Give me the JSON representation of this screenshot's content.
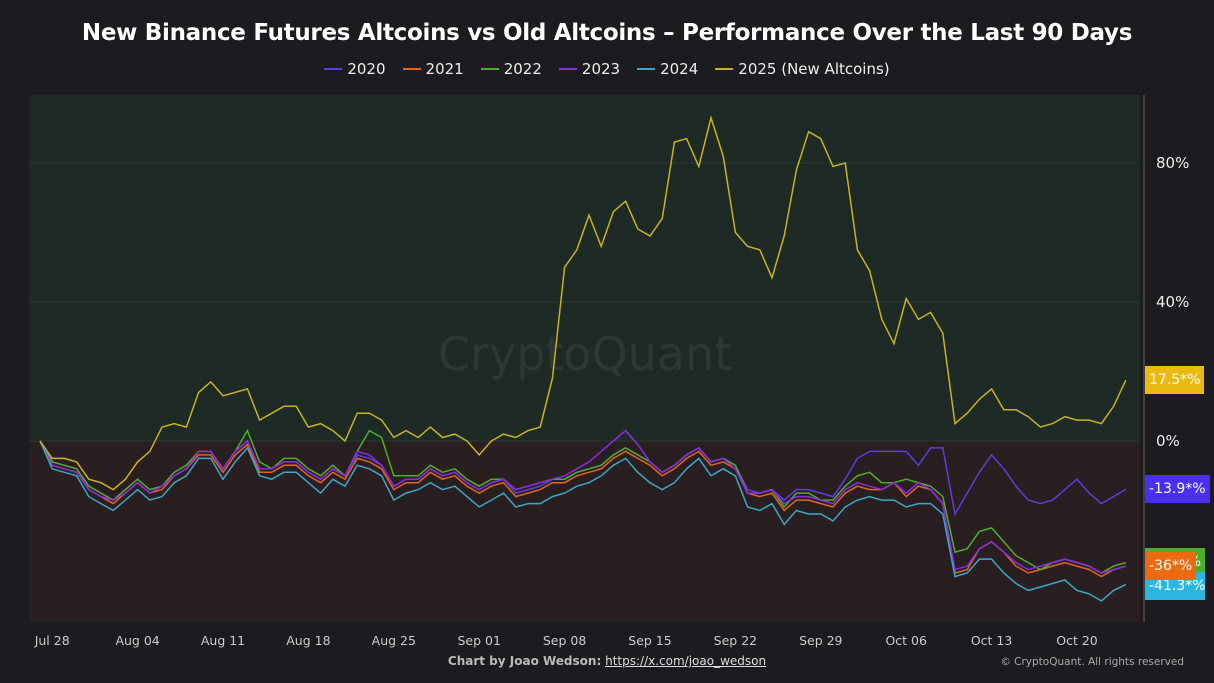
{
  "chart_data": {
    "type": "line",
    "title": "New Binance Futures Altcoins vs Old Altcoins – Performance Over the Last 90 Days",
    "xlabel": "",
    "ylabel": "",
    "ylim": [
      -52,
      100
    ],
    "yticks": [
      "80%",
      "40%",
      "0%"
    ],
    "ytick_values": [
      80,
      40,
      0
    ],
    "xticks": [
      "Jul 28",
      "Aug 04",
      "Aug 11",
      "Aug 18",
      "Aug 25",
      "Sep 01",
      "Sep 08",
      "Sep 15",
      "Sep 22",
      "Sep 29",
      "Oct 06",
      "Oct 13",
      "Oct 20"
    ],
    "xtick_index": [
      1,
      8,
      15,
      22,
      29,
      36,
      43,
      50,
      57,
      64,
      71,
      78,
      85
    ],
    "legend_position": "top-center",
    "grid": true,
    "series": [
      {
        "name": "2020",
        "color": "#5a3fe0",
        "last_label": "-13.9*%",
        "values": [
          0,
          -6,
          -7,
          -8,
          -13,
          -15,
          -17,
          -14,
          -11,
          -14,
          -13,
          -9,
          -7,
          -3,
          -3,
          -8,
          -3,
          0,
          -8,
          -8,
          -6,
          -6,
          -9,
          -11,
          -8,
          -10,
          -4,
          -5,
          -7,
          -13,
          -11,
          -11,
          -8,
          -10,
          -9,
          -12,
          -14,
          -12,
          -11,
          -15,
          -14,
          -13,
          -11,
          -11,
          -9,
          -8,
          -7,
          -4,
          -2,
          -4,
          -6,
          -9,
          -7,
          -4,
          -2,
          -6,
          -5,
          -7,
          -14,
          -15,
          -14,
          -17,
          -14,
          -14,
          -15,
          -16,
          -11,
          -5,
          -3,
          -3,
          -3,
          -3,
          -7,
          -2,
          -2,
          -21,
          -15,
          -9,
          -4,
          -8,
          -13,
          -17,
          -18,
          -17,
          -14,
          -11,
          -15,
          -18,
          -16,
          -13.9
        ]
      },
      {
        "name": "2021",
        "color": "#e0661a",
        "last_label": "-36*%",
        "values": [
          0,
          -7,
          -8,
          -9,
          -14,
          -16,
          -18,
          -15,
          -12,
          -15,
          -14,
          -10,
          -8,
          -4,
          -4,
          -9,
          -4,
          -1,
          -9,
          -9,
          -7,
          -7,
          -10,
          -12,
          -9,
          -11,
          -5,
          -6,
          -8,
          -14,
          -12,
          -12,
          -9,
          -11,
          -10,
          -13,
          -15,
          -13,
          -12,
          -16,
          -15,
          -14,
          -12,
          -12,
          -10,
          -9,
          -8,
          -5,
          -3,
          -5,
          -7,
          -10,
          -8,
          -5,
          -3,
          -7,
          -6,
          -8,
          -15,
          -16,
          -15,
          -20,
          -17,
          -17,
          -18,
          -19,
          -15,
          -13,
          -14,
          -14,
          -12,
          -16,
          -13,
          -14,
          -18,
          -38,
          -37,
          -31,
          -29,
          -32,
          -36,
          -38,
          -37,
          -36,
          -35,
          -36,
          -37,
          -39,
          -37,
          -36
        ]
      },
      {
        "name": "2022",
        "color": "#4caf2a",
        "last_label": "%",
        "values": [
          0,
          -6,
          -7,
          -8,
          -13,
          -15,
          -17,
          -14,
          -11,
          -14,
          -13,
          -9,
          -7,
          -3,
          -3,
          -8,
          -3,
          3,
          -6,
          -8,
          -5,
          -5,
          -8,
          -10,
          -7,
          -10,
          -3,
          3,
          1,
          -10,
          -10,
          -10,
          -7,
          -9,
          -8,
          -11,
          -13,
          -11,
          -11,
          -14,
          -13,
          -12,
          -11,
          -11,
          -9,
          -8,
          -7,
          -4,
          -2,
          -4,
          -6,
          -9,
          -7,
          -4,
          -2,
          -6,
          -5,
          -7,
          -15,
          -15,
          -14,
          -19,
          -15,
          -15,
          -17,
          -17,
          -13,
          -10,
          -9,
          -12,
          -12,
          -11,
          -12,
          -13,
          -16,
          -32,
          -31,
          -26,
          -25,
          -29,
          -33,
          -35,
          -37,
          -35,
          -34,
          -35,
          -36,
          -38,
          -36,
          -35
        ]
      },
      {
        "name": "2023",
        "color": "#8a2be2",
        "last_label": "",
        "values": [
          0,
          -7,
          -8,
          -9,
          -14,
          -16,
          -17,
          -15,
          -12,
          -15,
          -13,
          -10,
          -8,
          -3,
          -3,
          -8,
          -3,
          0,
          -8,
          -8,
          -6,
          -6,
          -9,
          -11,
          -8,
          -10,
          -3,
          -4,
          -7,
          -13,
          -11,
          -11,
          -8,
          -10,
          -9,
          -12,
          -14,
          -12,
          -11,
          -14,
          -13,
          -12,
          -11,
          -10,
          -8,
          -6,
          -3,
          0,
          3,
          -1,
          -6,
          -9,
          -7,
          -4,
          -2,
          -6,
          -5,
          -8,
          -15,
          -15,
          -14,
          -18,
          -16,
          -16,
          -17,
          -18,
          -14,
          -12,
          -13,
          -14,
          -12,
          -15,
          -12,
          -14,
          -18,
          -37,
          -36,
          -31,
          -29,
          -32,
          -35,
          -37,
          -36,
          -35,
          -34,
          -35,
          -36,
          -38,
          -37,
          -36
        ]
      },
      {
        "name": "2024",
        "color": "#3aa6c9",
        "last_label": "-41.3*%",
        "values": [
          0,
          -8,
          -9,
          -10,
          -16,
          -18,
          -20,
          -17,
          -14,
          -17,
          -16,
          -12,
          -10,
          -5,
          -5,
          -11,
          -6,
          -2,
          -10,
          -11,
          -9,
          -9,
          -12,
          -15,
          -11,
          -13,
          -7,
          -8,
          -10,
          -17,
          -15,
          -14,
          -12,
          -14,
          -13,
          -16,
          -19,
          -17,
          -15,
          -19,
          -18,
          -18,
          -16,
          -15,
          -13,
          -12,
          -10,
          -7,
          -5,
          -9,
          -12,
          -14,
          -12,
          -8,
          -5,
          -10,
          -8,
          -10,
          -19,
          -20,
          -18,
          -24,
          -20,
          -21,
          -21,
          -23,
          -19,
          -17,
          -16,
          -17,
          -17,
          -19,
          -18,
          -18,
          -21,
          -39,
          -38,
          -34,
          -34,
          -38,
          -41,
          -43,
          -42,
          -41,
          -40,
          -43,
          -44,
          -46,
          -43,
          -41.3
        ]
      },
      {
        "name": "2025 (New Altcoins)",
        "color": "#c9b21e",
        "last_label": "17.5*%",
        "values": [
          0,
          -5,
          -5,
          -6,
          -11,
          -12,
          -14,
          -11,
          -6,
          -3,
          4,
          5,
          4,
          14,
          17,
          13,
          14,
          15,
          6,
          8,
          10,
          10,
          4,
          5,
          3,
          0,
          8,
          8,
          6,
          1,
          3,
          1,
          4,
          1,
          2,
          0,
          -4,
          0,
          2,
          1,
          3,
          4,
          18,
          50,
          55,
          65,
          56,
          66,
          69,
          61,
          59,
          64,
          86,
          87,
          79,
          93,
          82,
          60,
          56,
          55,
          47,
          59,
          78,
          89,
          87,
          79,
          80,
          55,
          49,
          35,
          28,
          41,
          35,
          37,
          31,
          5,
          8,
          12,
          15,
          9,
          9,
          7,
          4,
          5,
          7,
          6,
          6,
          5,
          10,
          17.5
        ]
      }
    ]
  },
  "legend": [
    "2020",
    "2021",
    "2022",
    "2023",
    "2024",
    "2025 (New Altcoins)"
  ],
  "watermark": "CryptoQuant",
  "footer": {
    "by": "Chart by Joao Wedson:",
    "link": "https://x.com/joao_wedson"
  },
  "copyright": "© CryptoQuant. All rights reserved"
}
